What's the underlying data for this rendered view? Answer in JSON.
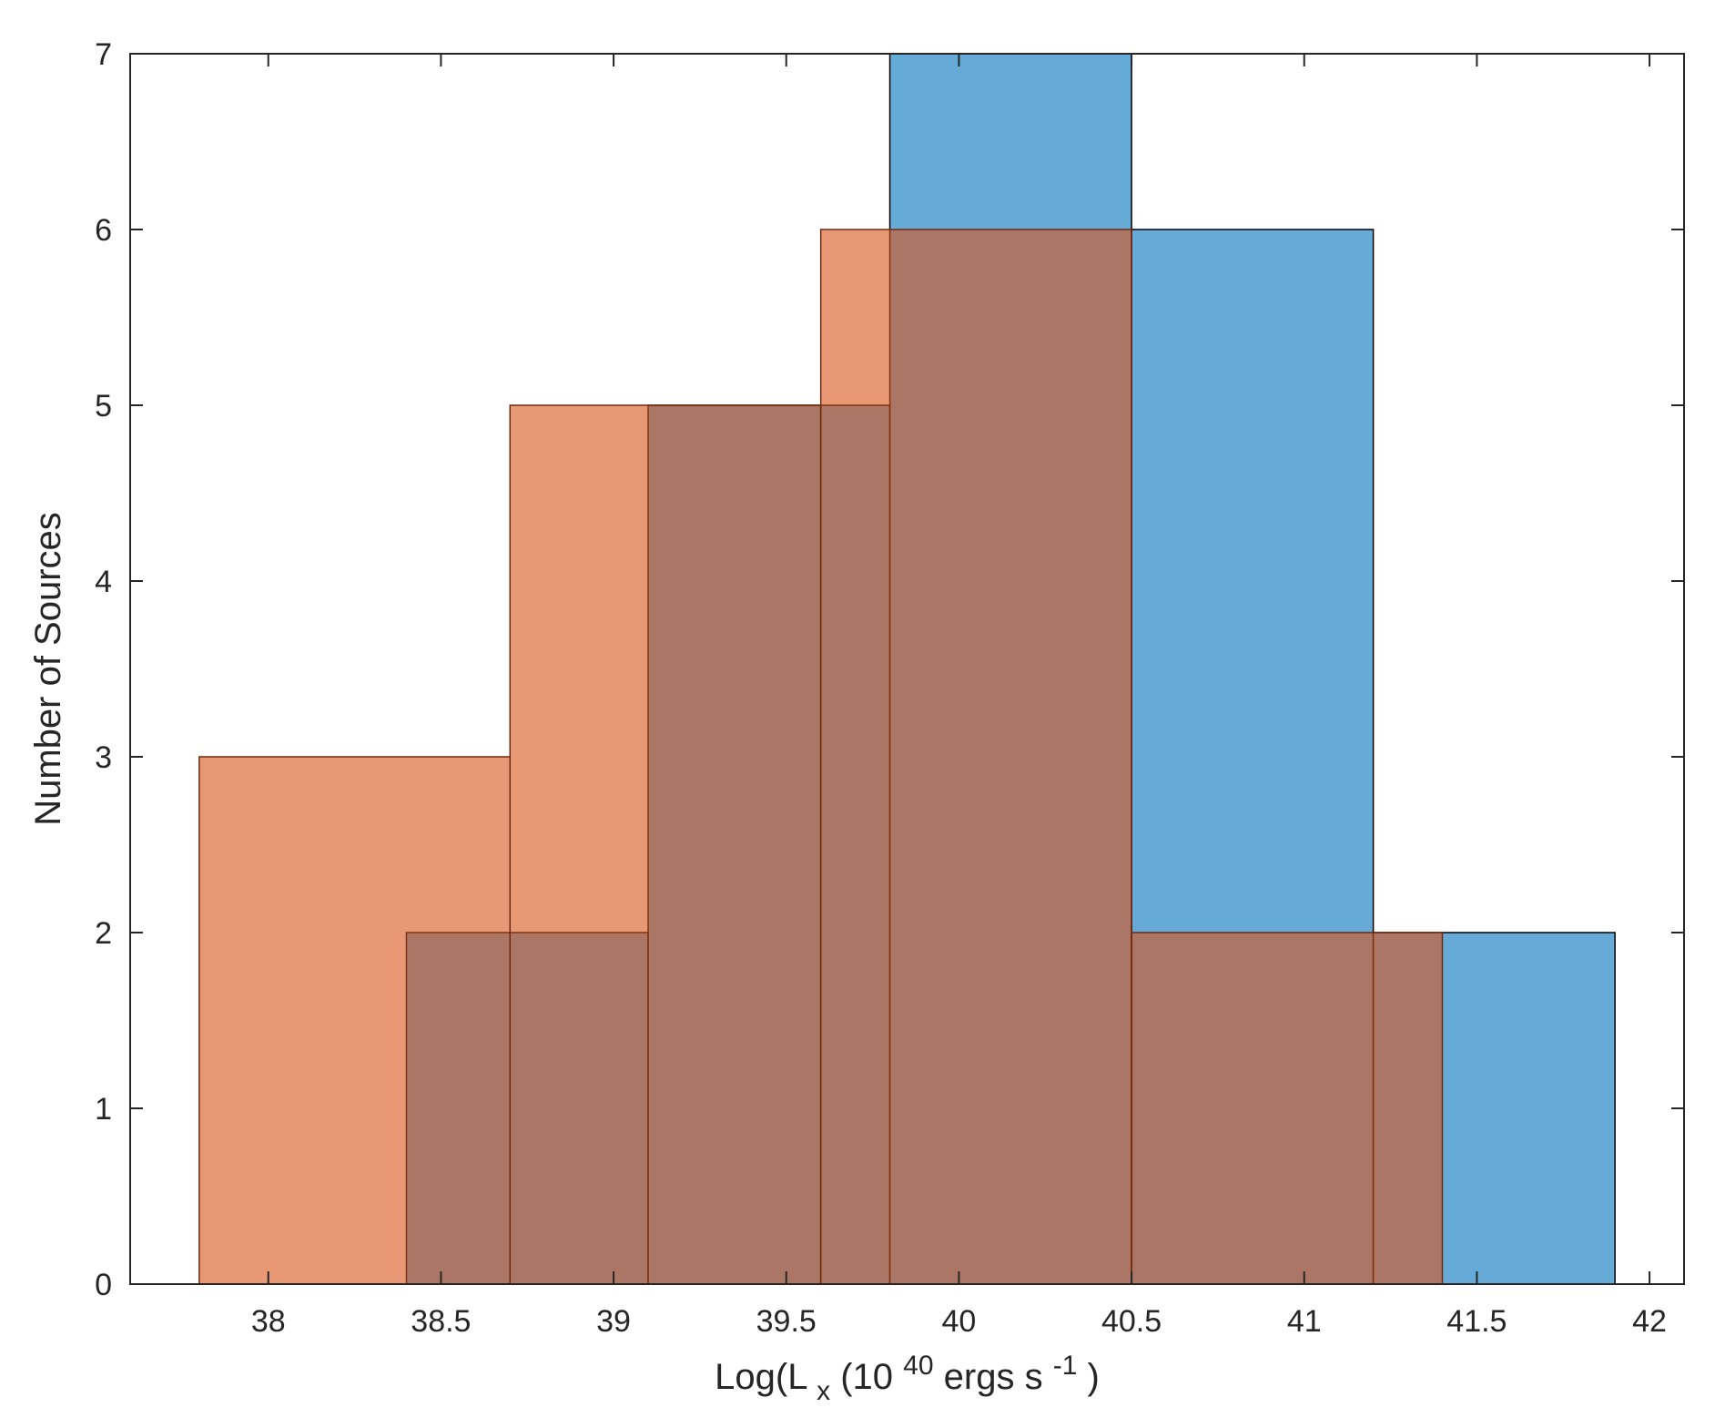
{
  "chart_data": {
    "type": "bar",
    "subtype": "overlapping-histogram",
    "title": "",
    "xlabel": {
      "prefix": "Log(L",
      "subscript": "x",
      "middle": "(10",
      "superscript": "40",
      "tail": " ergs s",
      "superscript2": "-1",
      "end": ")"
    },
    "ylabel": "Number of Sources",
    "xlim": [
      37.6,
      42.1
    ],
    "ylim": [
      0,
      7
    ],
    "xticks": [
      38,
      38.5,
      39,
      39.5,
      40,
      40.5,
      41,
      41.5,
      42
    ],
    "xtick_labels": [
      "38",
      "38.5",
      "39",
      "39.5",
      "40",
      "40.5",
      "41",
      "41.5",
      "42"
    ],
    "yticks": [
      0,
      1,
      2,
      3,
      4,
      5,
      6,
      7
    ],
    "ytick_labels": [
      "0",
      "1",
      "2",
      "3",
      "4",
      "5",
      "6",
      "7"
    ],
    "grid": false,
    "legend": "none",
    "series": [
      {
        "color": "#0072BD",
        "fill_opacity": 0.6,
        "edge_color": "#000000",
        "bin_edges": [
          38.4,
          39.1,
          39.8,
          40.5,
          41.2,
          41.9
        ],
        "counts": [
          2,
          5,
          7,
          6,
          2
        ]
      },
      {
        "color": "#D95319",
        "fill_opacity": 0.6,
        "edge_color": "#6e2a0e",
        "bin_edges": [
          37.8,
          38.7,
          39.6,
          40.5,
          41.4
        ],
        "counts": [
          3,
          5,
          6,
          2
        ]
      }
    ]
  }
}
